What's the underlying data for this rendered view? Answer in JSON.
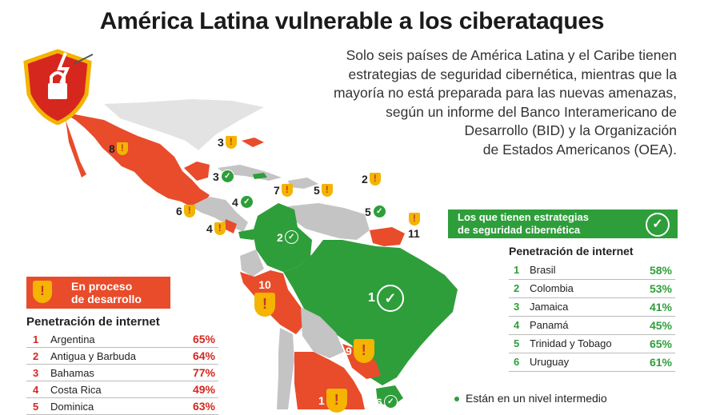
{
  "title": "América Latina vulnerable a los ciberataques",
  "subtitle": [
    "Solo seis países de América Latina y el Caribe tienen",
    "estrategias de seguridad cibernética, mientras que la",
    "mayoría no está preparada para las nuevas amenazas,",
    "según un informe del Banco Interamericano de",
    "Desarrollo (BID) y la Organización",
    "de Estados Americanos (OEA)."
  ],
  "colors": {
    "red": "#e84c2b",
    "green": "#2e9e3a",
    "yellow": "#f4b400",
    "gray": "#c4c4c4"
  },
  "icons": {
    "logo": "shield-lock-lightning-icon",
    "warning": "warning-shield-icon",
    "check": "check-circle-icon"
  },
  "map_markers": [
    {
      "num": "8",
      "type": "warning"
    },
    {
      "num": "3",
      "type": "warning"
    },
    {
      "num": "3",
      "type": "check"
    },
    {
      "num": "2",
      "type": "warning"
    },
    {
      "num": "7",
      "type": "warning"
    },
    {
      "num": "5",
      "type": "warning"
    },
    {
      "num": "6",
      "type": "warning"
    },
    {
      "num": "4",
      "type": "check"
    },
    {
      "num": "5",
      "type": "check"
    },
    {
      "num": "4",
      "type": "warning"
    },
    {
      "num": "11",
      "type": "warning"
    },
    {
      "num": "2",
      "type": "check"
    },
    {
      "num": "10",
      "type": "warning"
    },
    {
      "num": "1",
      "type": "check"
    },
    {
      "num": "9",
      "type": "warning"
    },
    {
      "num": "1",
      "type": "warning"
    },
    {
      "num": "6",
      "type": "check"
    }
  ],
  "left_panel": {
    "banner": [
      "En proceso",
      "de desarrollo"
    ],
    "subtitle": "Penetración de internet",
    "rows": [
      {
        "n": "1",
        "country": "Argentina",
        "pct": "65%"
      },
      {
        "n": "2",
        "country": "Antigua y Barbuda",
        "pct": "64%"
      },
      {
        "n": "3",
        "country": "Bahamas",
        "pct": "77%"
      },
      {
        "n": "4",
        "country": "Costa Rica",
        "pct": "49%"
      },
      {
        "n": "5",
        "country": "Dominica",
        "pct": "63%"
      }
    ]
  },
  "right_panel": {
    "banner": [
      "Los que tienen estrategias",
      "de seguridad cibernética"
    ],
    "subtitle": "Penetración de internet",
    "rows": [
      {
        "n": "1",
        "country": "Brasil",
        "pct": "58%"
      },
      {
        "n": "2",
        "country": "Colombia",
        "pct": "53%"
      },
      {
        "n": "3",
        "country": "Jamaica",
        "pct": "41%"
      },
      {
        "n": "4",
        "country": "Panamá",
        "pct": "45%"
      },
      {
        "n": "5",
        "country": "Trinidad y Tobago",
        "pct": "65%"
      },
      {
        "n": "6",
        "country": "Uruguay",
        "pct": "61%"
      }
    ],
    "footnote": "Están en un nivel intermedio"
  }
}
